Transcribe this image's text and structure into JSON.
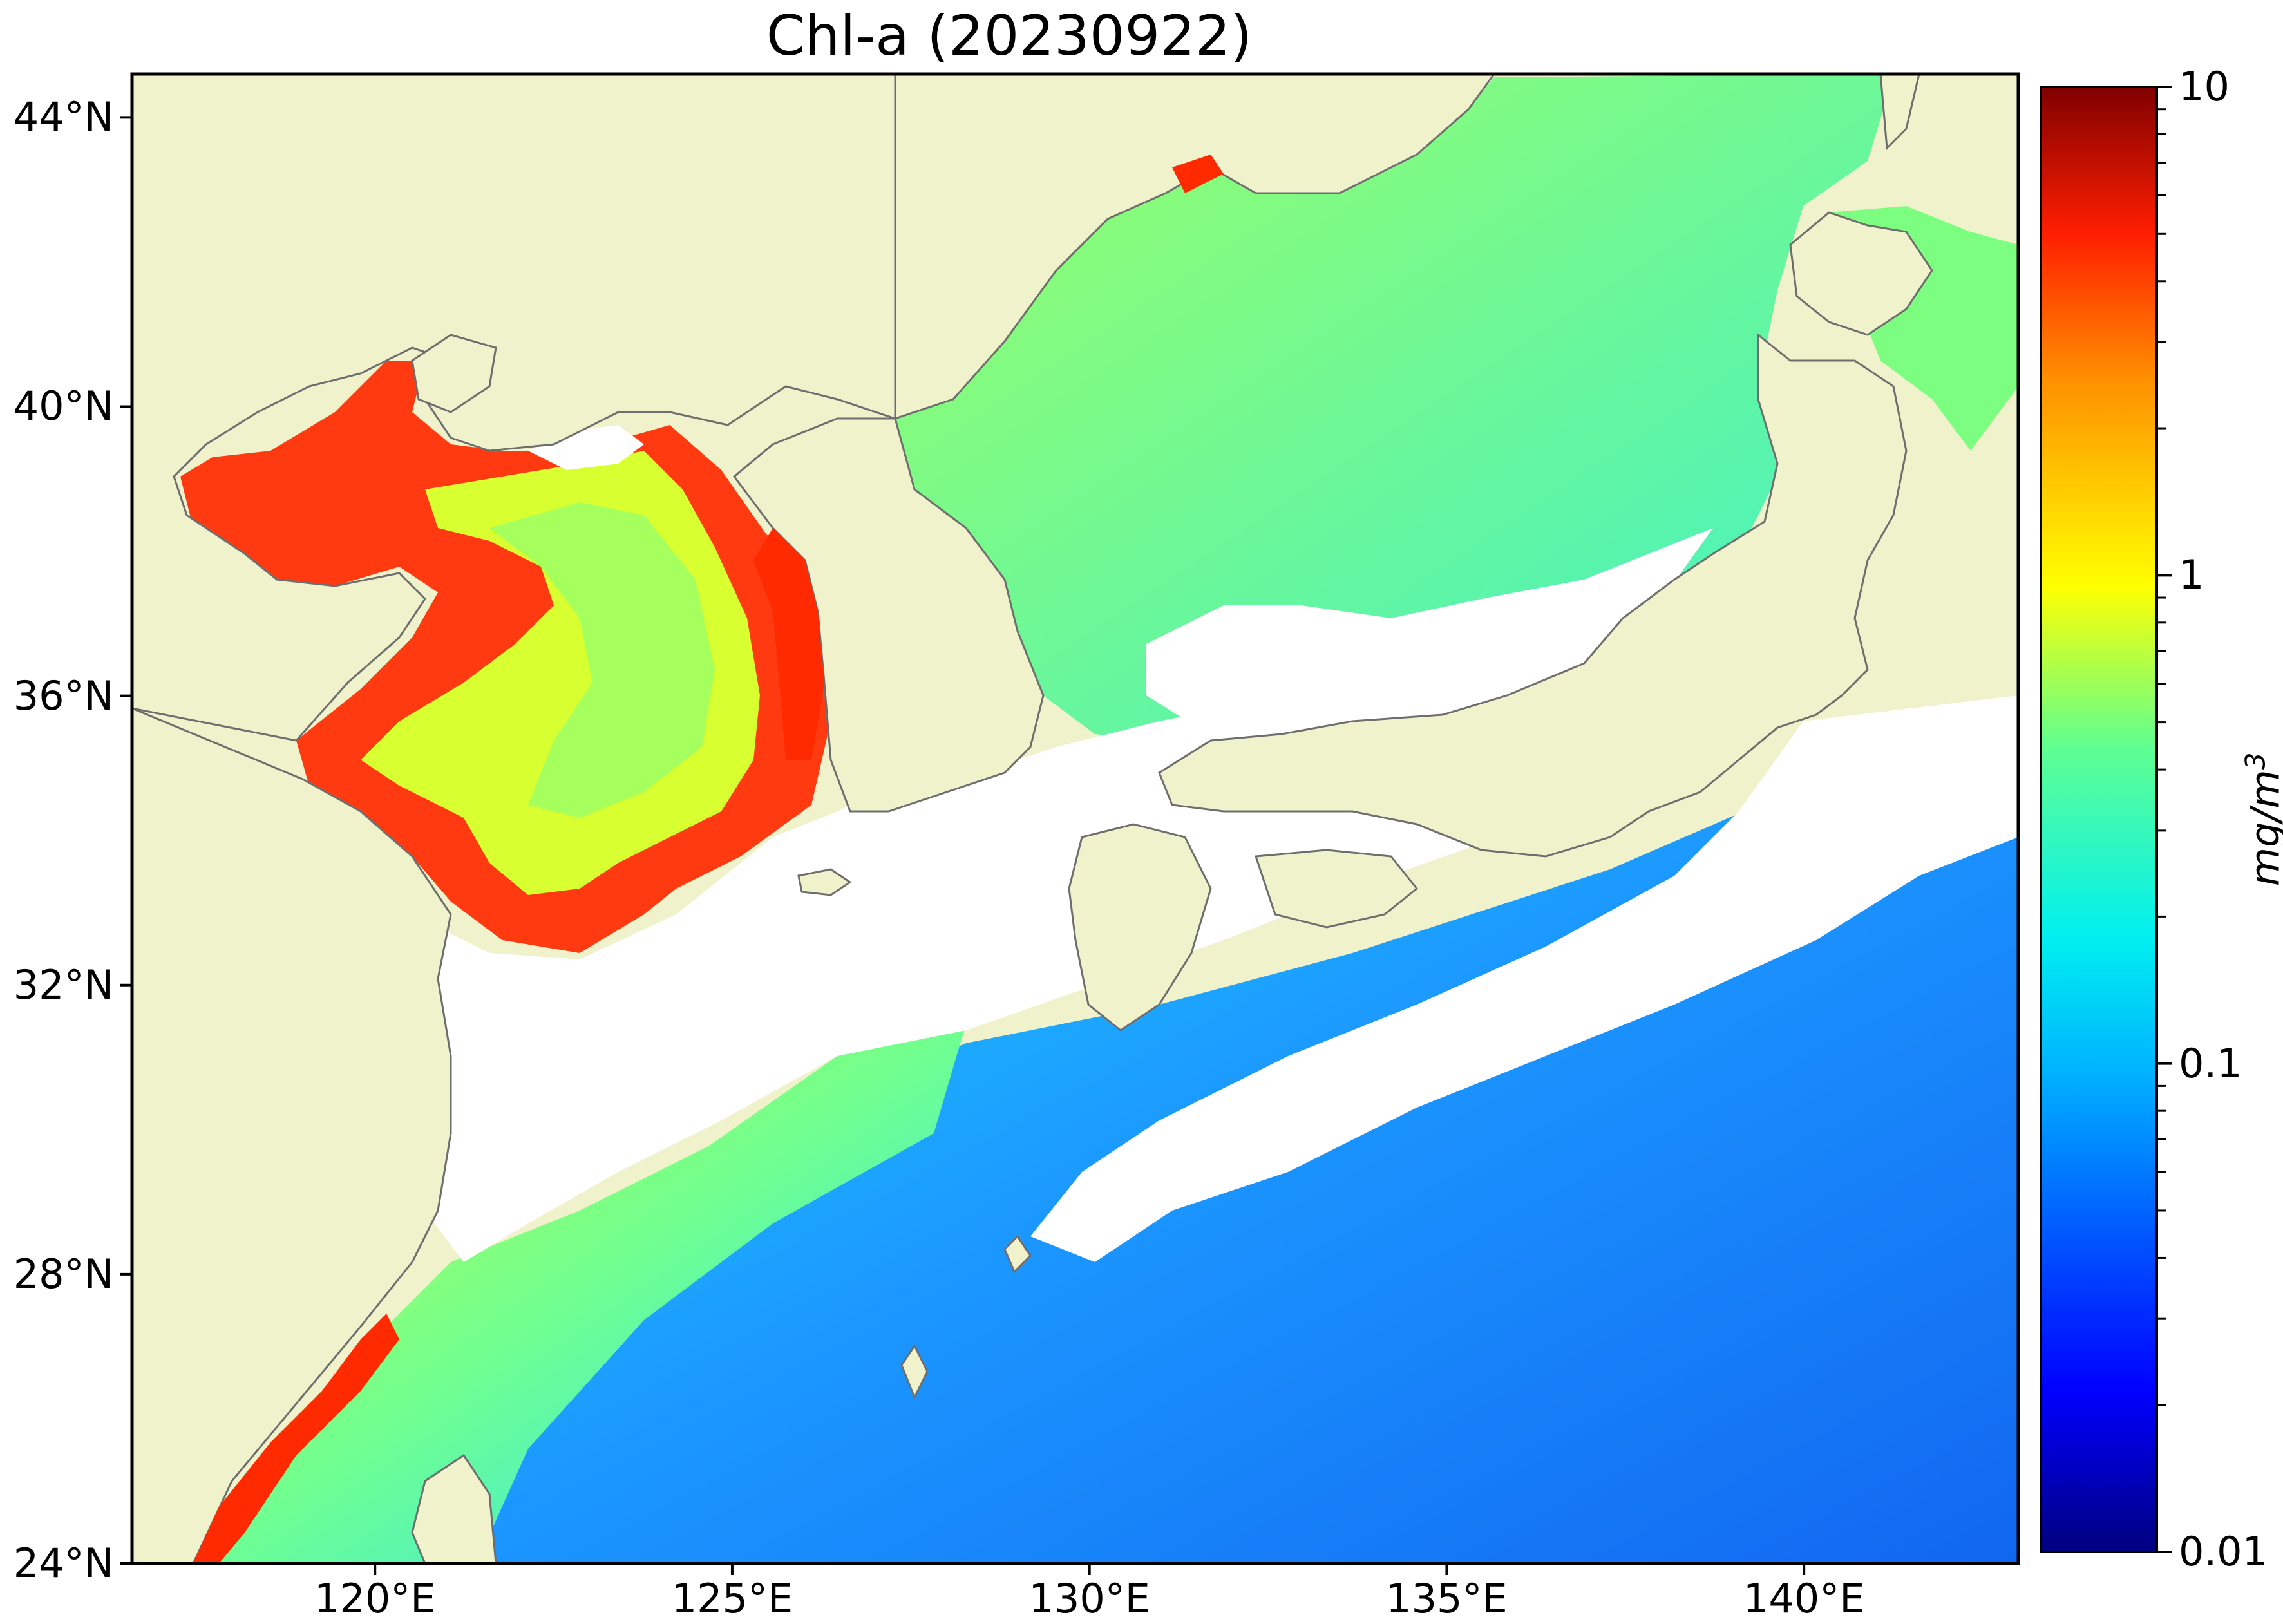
{
  "title": "Chl-a (20230922)",
  "map": {
    "region": "East China Sea, Yellow Sea, Sea of Japan, NW Pacific",
    "lon_range": [
      116.6,
      143.0
    ],
    "lat_range": [
      24.0,
      44.6
    ],
    "land_color": "#f0f2cc",
    "nodata_color": "#ffffff",
    "coast_color": "#6e6e6e",
    "colormap": "jet",
    "scale": "log"
  },
  "axes": {
    "x_ticks": [
      {
        "value": 120,
        "label": "120°E"
      },
      {
        "value": 125,
        "label": "125°E"
      },
      {
        "value": 130,
        "label": "130°E"
      },
      {
        "value": 135,
        "label": "135°E"
      },
      {
        "value": 140,
        "label": "140°E"
      }
    ],
    "y_ticks": [
      {
        "value": 24,
        "label": "24°N"
      },
      {
        "value": 28,
        "label": "28°N"
      },
      {
        "value": 32,
        "label": "32°N"
      },
      {
        "value": 36,
        "label": "36°N"
      },
      {
        "value": 40,
        "label": "40°N"
      },
      {
        "value": 44,
        "label": "44°N"
      }
    ]
  },
  "colorbar": {
    "label": "mg/m",
    "label_sup": "3",
    "min": 0.01,
    "max": 10,
    "ticks": [
      {
        "value": 0.01,
        "label": "0.01"
      },
      {
        "value": 0.1,
        "label": "0.1"
      },
      {
        "value": 1,
        "label": "1"
      },
      {
        "value": 10,
        "label": "10"
      }
    ],
    "colors": [
      "#000080",
      "#0000ff",
      "#0080ff",
      "#00e0ff",
      "#40ffc0",
      "#a0ff60",
      "#ffff00",
      "#ff9000",
      "#ff2000",
      "#800000"
    ]
  }
}
